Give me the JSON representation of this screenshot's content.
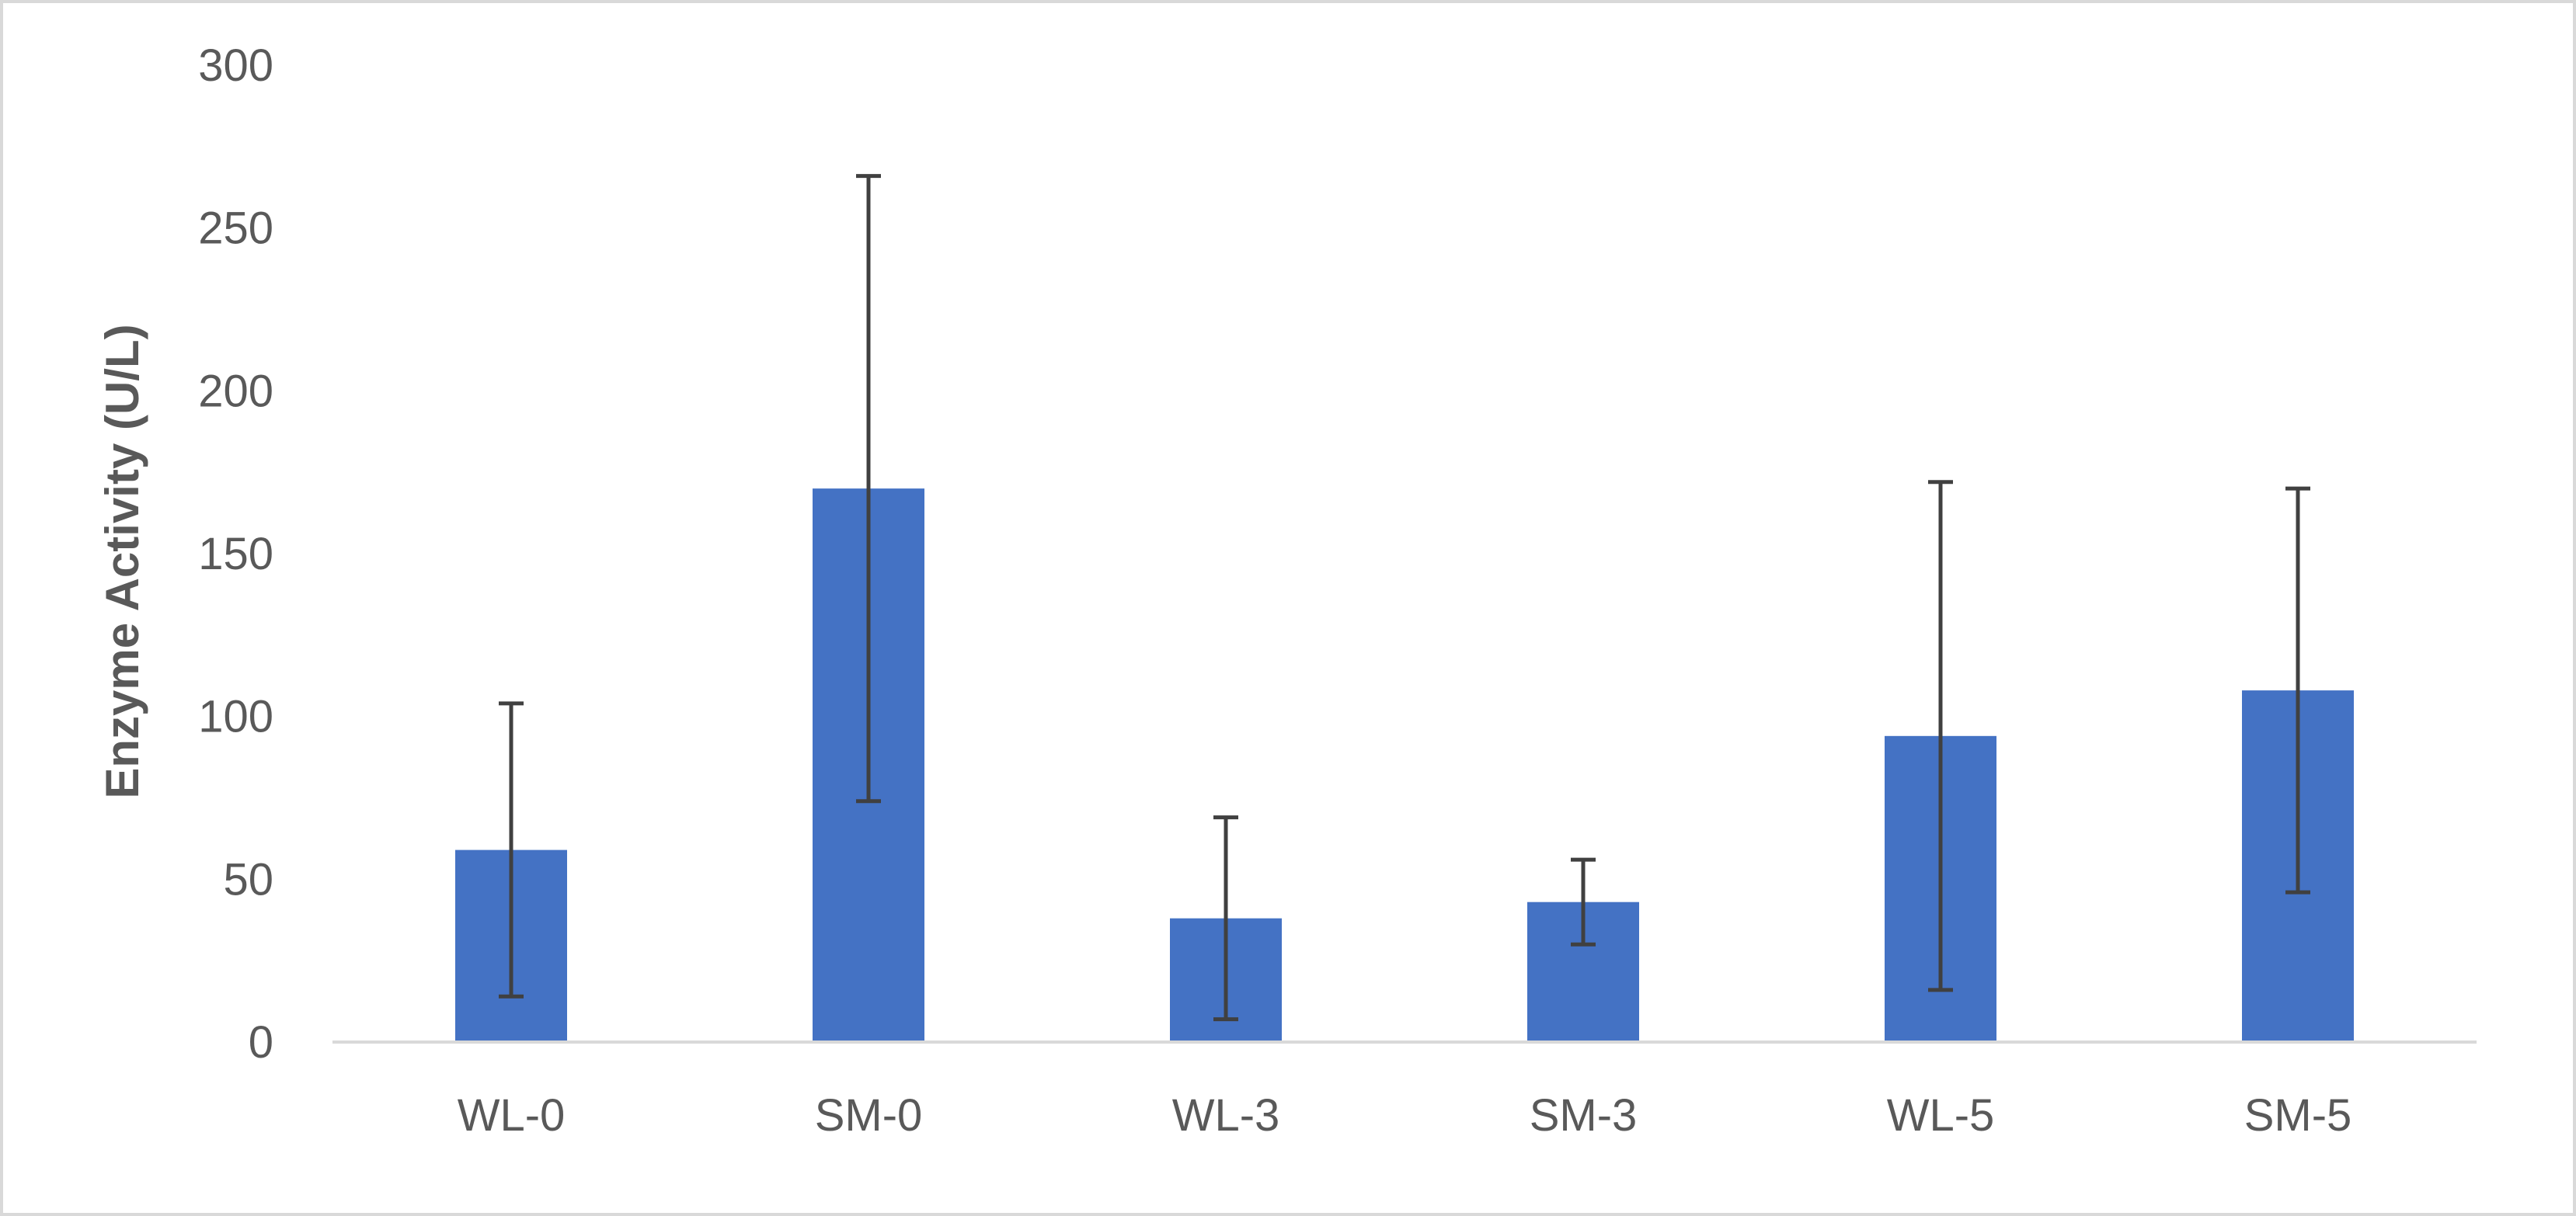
{
  "chart_data": {
    "type": "bar",
    "title": "",
    "xlabel": "",
    "ylabel": "Enzyme Activity (U/L)",
    "categories": [
      "WL-0",
      "SM-0",
      "WL-3",
      "SM-3",
      "WL-5",
      "SM-5"
    ],
    "series": [
      {
        "values": [
          59,
          170,
          38,
          43,
          94,
          108
        ],
        "error_bars": [
          45,
          96,
          31,
          13,
          78,
          62
        ]
      }
    ],
    "ylim": [
      0,
      300
    ],
    "yticks": [
      0,
      50,
      100,
      150,
      200,
      250,
      300
    ],
    "grid": false,
    "legend": "none",
    "colors": {
      "bar": "#4472c4",
      "error_bar": "#404040",
      "axis": "#d9d9d9",
      "text": "#595959"
    }
  }
}
